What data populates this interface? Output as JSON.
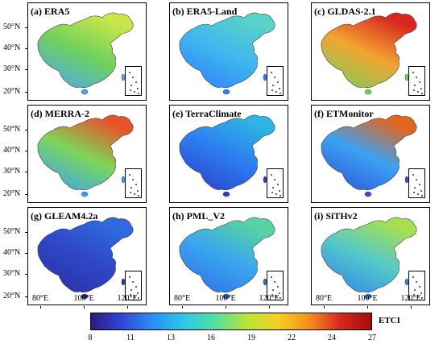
{
  "panels": [
    {
      "title": "(a) ERA5",
      "palette": [
        "#4aa3ff",
        "#6fd15d",
        "#c9e64a"
      ]
    },
    {
      "title": "(b) ERA5-Land",
      "palette": [
        "#2f7bff",
        "#3fb7ee",
        "#5ad3c8"
      ]
    },
    {
      "title": "(c) GLDAS-2.1",
      "palette": [
        "#6fd15d",
        "#f2a531",
        "#d8281e"
      ]
    },
    {
      "title": "(d) MERRA-2",
      "palette": [
        "#36a0ff",
        "#7cd659",
        "#e8542a"
      ]
    },
    {
      "title": "(e) TerraClimate",
      "palette": [
        "#2a3cc8",
        "#2c7bf0",
        "#2fb4e4"
      ]
    },
    {
      "title": "(f) ETMonitor",
      "palette": [
        "#2f4fd8",
        "#3aa2f2",
        "#e2661f"
      ]
    },
    {
      "title": "(g) GLEAM4.2a",
      "palette": [
        "#2a2f9e",
        "#2f46c8",
        "#2f6ae0"
      ]
    },
    {
      "title": "(h) PML_V2",
      "palette": [
        "#2e6ae8",
        "#39a6f0",
        "#57d4a0"
      ]
    },
    {
      "title": "(i) SiTHv2",
      "palette": [
        "#2f7ff0",
        "#54c9c8",
        "#a6e052"
      ]
    }
  ],
  "y_axis_labels": [
    "50°N",
    "40°N",
    "30°N",
    "20°N"
  ],
  "x_axis_labels": [
    "80°E",
    "100°E",
    "120°E"
  ],
  "colorbar": {
    "label": "ETCI",
    "ticks": [
      "8",
      "11",
      "13",
      "16",
      "19",
      "22",
      "24",
      "27"
    ],
    "colors": [
      "#2a1c80",
      "#2f48d8",
      "#2a8ff5",
      "#2fc8e8",
      "#53e09b",
      "#b9e43a",
      "#f4d122",
      "#f3901f",
      "#d8281e",
      "#a10d0d"
    ]
  }
}
